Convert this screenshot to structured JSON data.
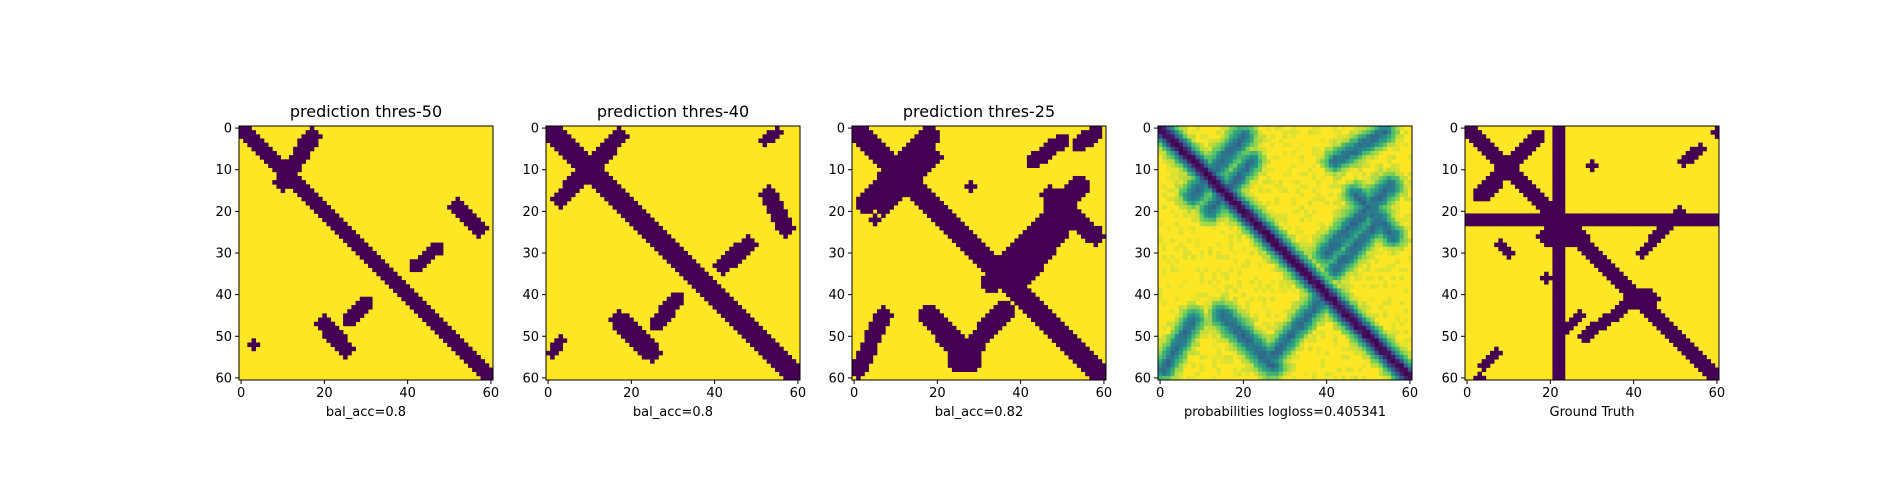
{
  "chart_data": [
    {
      "type": "heatmap",
      "title": "prediction thres-50",
      "xlabel": "bal_acc=0.8",
      "ylabel": "",
      "size": 61,
      "x_ticks": [
        0,
        20,
        40,
        60
      ],
      "y_ticks": [
        0,
        10,
        20,
        30,
        40,
        50,
        60
      ],
      "xlim": [
        0,
        60
      ],
      "ylim": [
        60,
        0
      ],
      "colormap": "viridis",
      "value_range": [
        0,
        1
      ],
      "grid": false,
      "features": [
        {
          "kind": "band",
          "from": [
            0,
            0
          ],
          "to": [
            60,
            60
          ],
          "width": 2
        },
        {
          "kind": "band",
          "from": [
            17,
            2
          ],
          "to": [
            10,
            13
          ],
          "width": 2
        },
        {
          "kind": "band",
          "from": [
            13,
            8
          ],
          "to": [
            17,
            2
          ],
          "width": 1.5
        },
        {
          "kind": "band",
          "from": [
            52,
            19
          ],
          "to": [
            57,
            24
          ],
          "width": 2
        },
        {
          "kind": "band",
          "from": [
            42,
            33
          ],
          "to": [
            47,
            29
          ],
          "width": 1.5
        },
        {
          "kind": "band",
          "from": [
            20,
            47
          ],
          "to": [
            25,
            53
          ],
          "width": 2
        },
        {
          "kind": "band",
          "from": [
            26,
            46
          ],
          "to": [
            30,
            42
          ],
          "width": 1.5
        },
        {
          "kind": "dot",
          "at": [
            3,
            52
          ],
          "width": 1
        }
      ]
    },
    {
      "type": "heatmap",
      "title": "prediction thres-40",
      "xlabel": "bal_acc=0.8",
      "ylabel": "",
      "size": 61,
      "x_ticks": [
        0,
        20,
        40,
        60
      ],
      "y_ticks": [
        0,
        10,
        20,
        30,
        40,
        50,
        60
      ],
      "xlim": [
        0,
        60
      ],
      "ylim": [
        60,
        0
      ],
      "colormap": "viridis",
      "value_range": [
        0,
        1
      ],
      "grid": false,
      "features": [
        {
          "kind": "band",
          "from": [
            0,
            0
          ],
          "to": [
            60,
            60
          ],
          "width": 2.2
        },
        {
          "kind": "band",
          "from": [
            17,
            2
          ],
          "to": [
            3,
            17
          ],
          "width": 2
        },
        {
          "kind": "band",
          "from": [
            53,
            16
          ],
          "to": [
            57,
            24
          ],
          "width": 2.2
        },
        {
          "kind": "band",
          "from": [
            42,
            33
          ],
          "to": [
            48,
            28
          ],
          "width": 2
        },
        {
          "kind": "band",
          "from": [
            17,
            46
          ],
          "to": [
            25,
            54
          ],
          "width": 2.2
        },
        {
          "kind": "band",
          "from": [
            26,
            47
          ],
          "to": [
            31,
            41
          ],
          "width": 1.8
        },
        {
          "kind": "band",
          "from": [
            1,
            54
          ],
          "to": [
            3,
            51
          ],
          "width": 1.2
        },
        {
          "kind": "band",
          "from": [
            52,
            3
          ],
          "to": [
            55,
            1
          ],
          "width": 1.2
        }
      ]
    },
    {
      "type": "heatmap",
      "title": "prediction thres-25",
      "xlabel": "bal_acc=0.82",
      "ylabel": "",
      "size": 61,
      "x_ticks": [
        0,
        20,
        40,
        60
      ],
      "y_ticks": [
        0,
        10,
        20,
        30,
        40,
        50,
        60
      ],
      "xlim": [
        0,
        60
      ],
      "ylim": [
        60,
        0
      ],
      "colormap": "viridis",
      "value_range": [
        0,
        1
      ],
      "grid": false,
      "features": [
        {
          "kind": "band",
          "from": [
            0,
            0
          ],
          "to": [
            60,
            60
          ],
          "width": 2.8
        },
        {
          "kind": "band",
          "from": [
            18,
            2
          ],
          "to": [
            3,
            18
          ],
          "width": 2.6
        },
        {
          "kind": "band",
          "from": [
            19,
            7
          ],
          "to": [
            7,
            19
          ],
          "width": 2
        },
        {
          "kind": "band",
          "from": [
            54,
            14
          ],
          "to": [
            33,
            37
          ],
          "width": 2.6
        },
        {
          "kind": "band",
          "from": [
            52,
            20
          ],
          "to": [
            37,
            35
          ],
          "width": 2
        },
        {
          "kind": "band",
          "from": [
            47,
            16
          ],
          "to": [
            58,
            26
          ],
          "width": 2.2
        },
        {
          "kind": "band",
          "from": [
            18,
            45
          ],
          "to": [
            28,
            56
          ],
          "width": 2.6
        },
        {
          "kind": "band",
          "from": [
            25,
            56
          ],
          "to": [
            36,
            44
          ],
          "width": 2.4
        },
        {
          "kind": "band",
          "from": [
            41,
            36
          ],
          "to": [
            51,
            23
          ],
          "width": 2
        },
        {
          "kind": "band",
          "from": [
            1,
            58
          ],
          "to": [
            7,
            45
          ],
          "width": 2
        },
        {
          "kind": "band",
          "from": [
            43,
            8
          ],
          "to": [
            50,
            3
          ],
          "width": 1.8
        },
        {
          "kind": "band",
          "from": [
            54,
            4
          ],
          "to": [
            58,
            1
          ],
          "width": 1.8
        },
        {
          "kind": "dot",
          "at": [
            28,
            14
          ],
          "width": 1.2
        },
        {
          "kind": "dot",
          "at": [
            5,
            22
          ],
          "width": 1.2
        }
      ]
    },
    {
      "type": "heatmap",
      "title": "",
      "xlabel": "probabilities logloss=0.405341",
      "ylabel": "",
      "size": 61,
      "x_ticks": [
        0,
        20,
        40,
        60
      ],
      "y_ticks": [
        0,
        10,
        20,
        30,
        40,
        50,
        60
      ],
      "xlim": [
        0,
        60
      ],
      "ylim": [
        60,
        0
      ],
      "colormap": "viridis",
      "value_range": [
        0,
        1
      ],
      "grid": false,
      "continuous": true,
      "features": [
        {
          "kind": "band",
          "from": [
            0,
            0
          ],
          "to": [
            60,
            60
          ],
          "width": 3
        },
        {
          "kind": "band",
          "from": [
            20,
            2
          ],
          "to": [
            8,
            16
          ],
          "width": 3.5
        },
        {
          "kind": "band",
          "from": [
            22,
            8
          ],
          "to": [
            12,
            20
          ],
          "width": 3
        },
        {
          "kind": "band",
          "from": [
            55,
            14
          ],
          "to": [
            40,
            30
          ],
          "width": 3.5
        },
        {
          "kind": "band",
          "from": [
            53,
            22
          ],
          "to": [
            42,
            34
          ],
          "width": 3
        },
        {
          "kind": "band",
          "from": [
            47,
            16
          ],
          "to": [
            56,
            26
          ],
          "width": 3
        },
        {
          "kind": "band",
          "from": [
            15,
            45
          ],
          "to": [
            27,
            57
          ],
          "width": 3.5
        },
        {
          "kind": "band",
          "from": [
            27,
            55
          ],
          "to": [
            38,
            42
          ],
          "width": 3
        },
        {
          "kind": "band",
          "from": [
            1,
            58
          ],
          "to": [
            8,
            46
          ],
          "width": 3
        },
        {
          "kind": "band",
          "from": [
            42,
            8
          ],
          "to": [
            54,
            1
          ],
          "width": 3
        }
      ]
    },
    {
      "type": "heatmap",
      "title": "",
      "xlabel": "Ground Truth",
      "ylabel": "",
      "size": 61,
      "x_ticks": [
        0,
        20,
        40,
        60
      ],
      "y_ticks": [
        0,
        10,
        20,
        30,
        40,
        50,
        60
      ],
      "xlim": [
        0,
        60
      ],
      "ylim": [
        60,
        0
      ],
      "colormap": "viridis",
      "value_range": [
        0,
        1
      ],
      "grid": false,
      "features": [
        {
          "kind": "band",
          "from": [
            0,
            0
          ],
          "to": [
            60,
            60
          ],
          "width": 1.8
        },
        {
          "kind": "band",
          "from": [
            22,
            0
          ],
          "to": [
            22,
            60
          ],
          "width": 1.5
        },
        {
          "kind": "band",
          "from": [
            0,
            22
          ],
          "to": [
            60,
            22
          ],
          "width": 1.5
        },
        {
          "kind": "band",
          "from": [
            17,
            2
          ],
          "to": [
            3,
            16
          ],
          "width": 1.5
        },
        {
          "kind": "band",
          "from": [
            12,
            7
          ],
          "to": [
            5,
            16
          ],
          "width": 1.2
        },
        {
          "kind": "band",
          "from": [
            42,
            30
          ],
          "to": [
            51,
            20
          ],
          "width": 1.2
        },
        {
          "kind": "band",
          "from": [
            38,
            43
          ],
          "to": [
            28,
            50
          ],
          "width": 1.4
        },
        {
          "kind": "band",
          "from": [
            22,
            50
          ],
          "to": [
            27,
            45
          ],
          "width": 1.2
        },
        {
          "kind": "band",
          "from": [
            52,
            8
          ],
          "to": [
            56,
            5
          ],
          "width": 1.2
        },
        {
          "kind": "band",
          "from": [
            4,
            57
          ],
          "to": [
            7,
            54
          ],
          "width": 1
        },
        {
          "kind": "band",
          "from": [
            8,
            28
          ],
          "to": [
            10,
            30
          ],
          "width": 1.2
        },
        {
          "kind": "band",
          "from": [
            19,
            26
          ],
          "to": [
            27,
            26
          ],
          "width": 2
        },
        {
          "kind": "band",
          "from": [
            40,
            41
          ],
          "to": [
            44,
            41
          ],
          "width": 2
        },
        {
          "kind": "dot",
          "at": [
            30,
            9
          ],
          "width": 1
        },
        {
          "kind": "dot",
          "at": [
            19,
            36
          ],
          "width": 1
        },
        {
          "kind": "dot",
          "at": [
            60,
            1
          ],
          "width": 1
        },
        {
          "kind": "dot",
          "at": [
            3,
            60
          ],
          "width": 1
        }
      ]
    }
  ]
}
